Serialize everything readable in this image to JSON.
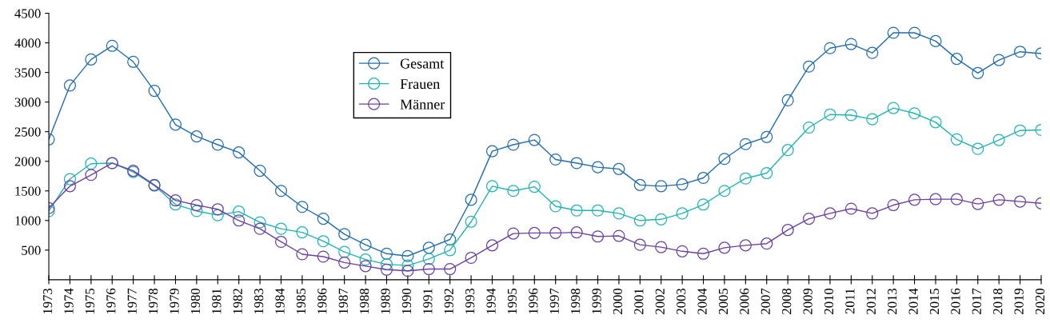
{
  "chart_data": {
    "type": "line",
    "x": [
      1973,
      1974,
      1975,
      1976,
      1977,
      1978,
      1979,
      1980,
      1981,
      1982,
      1983,
      1984,
      1985,
      1986,
      1987,
      1988,
      1989,
      1990,
      1991,
      1992,
      1993,
      1994,
      1995,
      1996,
      1997,
      1998,
      1999,
      2000,
      2001,
      2002,
      2003,
      2004,
      2005,
      2006,
      2007,
      2008,
      2009,
      2010,
      2011,
      2012,
      2013,
      2014,
      2015,
      2016,
      2017,
      2018,
      2019,
      2020
    ],
    "series": [
      {
        "name": "Gesamt",
        "color": "#1f6db3",
        "values": [
          2370,
          3280,
          3720,
          3950,
          3680,
          3190,
          2620,
          2420,
          2280,
          2150,
          1840,
          1500,
          1230,
          1030,
          770,
          590,
          440,
          400,
          540,
          680,
          1350,
          2170,
          2280,
          2360,
          2030,
          1970,
          1900,
          1870,
          1600,
          1580,
          1610,
          1720,
          2040,
          2290,
          2410,
          3030,
          3600,
          3910,
          3980,
          3830,
          4170,
          4170,
          4030,
          3730,
          3490,
          3710,
          3850,
          3820
        ]
      },
      {
        "name": "Frauen",
        "color": "#20b4b4",
        "values": [
          1160,
          1700,
          1960,
          1970,
          1820,
          1590,
          1270,
          1160,
          1090,
          1150,
          970,
          860,
          800,
          650,
          470,
          340,
          260,
          240,
          350,
          500,
          980,
          1580,
          1500,
          1570,
          1240,
          1170,
          1170,
          1120,
          1000,
          1020,
          1120,
          1270,
          1500,
          1710,
          1800,
          2190,
          2570,
          2790,
          2780,
          2710,
          2900,
          2810,
          2660,
          2370,
          2210,
          2360,
          2520,
          2530
        ]
      },
      {
        "name": "Männer",
        "color": "#6a3fa6",
        "values": [
          1210,
          1580,
          1770,
          1970,
          1840,
          1600,
          1340,
          1260,
          1190,
          1000,
          860,
          640,
          430,
          390,
          290,
          230,
          170,
          150,
          180,
          180,
          370,
          580,
          780,
          790,
          790,
          800,
          730,
          740,
          590,
          550,
          480,
          440,
          540,
          580,
          610,
          840,
          1030,
          1120,
          1200,
          1120,
          1260,
          1350,
          1360,
          1360,
          1280,
          1350,
          1320,
          1290
        ]
      }
    ],
    "xlim": [
      1973,
      2020
    ],
    "xticks": [
      1973,
      1974,
      1975,
      1976,
      1977,
      1978,
      1979,
      1980,
      1981,
      1982,
      1983,
      1984,
      1985,
      1986,
      1987,
      1988,
      1989,
      1990,
      1991,
      1992,
      1993,
      1994,
      1995,
      1996,
      1997,
      1998,
      1999,
      2000,
      2001,
      2002,
      2003,
      2004,
      2005,
      2006,
      2007,
      2008,
      2009,
      2010,
      2011,
      2012,
      2013,
      2014,
      2015,
      2016,
      2017,
      2018,
      2019,
      2020
    ],
    "ylim": [
      0,
      4500
    ],
    "yticks": [
      500,
      1000,
      1500,
      2000,
      2500,
      3000,
      3500,
      4000,
      4500
    ],
    "marker": "circle",
    "line_style": "solid",
    "grid": false,
    "legend": "top"
  }
}
